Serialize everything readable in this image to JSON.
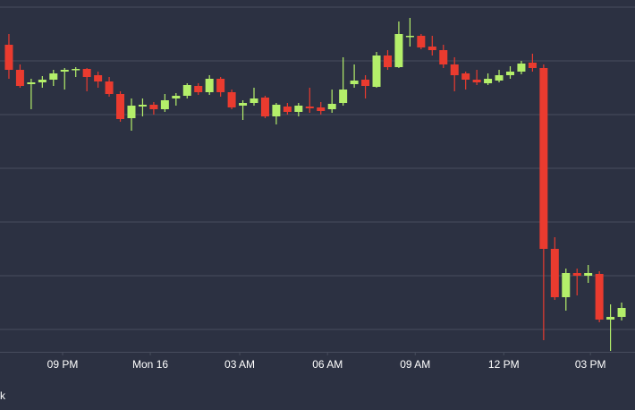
{
  "chart_data": {
    "type": "candlestick",
    "x": [
      0,
      1,
      2,
      3,
      4,
      5,
      6,
      7,
      8,
      9,
      10,
      11,
      12,
      13,
      14,
      15,
      16,
      17,
      18,
      19,
      20,
      21,
      22,
      23,
      24,
      25,
      26,
      27,
      28,
      29,
      30,
      31,
      32,
      33,
      34,
      35,
      36,
      37,
      38,
      39,
      40,
      41,
      42,
      43,
      44,
      45,
      46,
      47,
      48,
      49,
      50,
      51,
      52,
      53,
      54,
      55
    ],
    "open": [
      343,
      315,
      299,
      301,
      304,
      313,
      315,
      316,
      309,
      302,
      288,
      261,
      274,
      276,
      271,
      283,
      286,
      297,
      290,
      305,
      290,
      275,
      278,
      284,
      263,
      274,
      268,
      274,
      273,
      271,
      278,
      299,
      304,
      296,
      331,
      318,
      352,
      353,
      341,
      337,
      321,
      311,
      304,
      300,
      303,
      309,
      313,
      323,
      317,
      115,
      61,
      88,
      85,
      87,
      36,
      39
    ],
    "high": [
      355,
      321,
      305,
      308,
      315,
      317,
      318,
      317,
      313,
      307,
      291,
      283,
      283,
      279,
      288,
      289,
      300,
      300,
      309,
      307,
      293,
      281,
      295,
      286,
      278,
      278,
      278,
      295,
      279,
      293,
      329,
      321,
      309,
      335,
      337,
      369,
      373,
      355,
      353,
      343,
      329,
      313,
      315,
      311,
      315,
      319,
      325,
      333,
      321,
      128,
      93,
      93,
      97,
      90,
      53,
      55
    ],
    "low": [
      305,
      295,
      271,
      295,
      297,
      293,
      307,
      291,
      295,
      285,
      257,
      247,
      263,
      265,
      268,
      275,
      283,
      287,
      287,
      285,
      271,
      259,
      275,
      261,
      254,
      265,
      263,
      267,
      265,
      267,
      275,
      295,
      283,
      295,
      315,
      317,
      341,
      338,
      331,
      317,
      291,
      293,
      298,
      298,
      301,
      305,
      310,
      313,
      13,
      58,
      46,
      63,
      77,
      33,
      1,
      35
    ],
    "close": [
      315,
      297,
      301,
      304,
      311,
      315,
      316,
      307,
      302,
      288,
      260,
      275,
      276,
      271,
      281,
      286,
      298,
      290,
      305,
      290,
      273,
      278,
      283,
      263,
      276,
      268,
      275,
      272,
      269,
      277,
      293,
      303,
      297,
      331,
      318,
      355,
      353,
      340,
      337,
      321,
      309,
      304,
      301,
      305,
      309,
      313,
      322,
      317,
      115,
      61,
      88,
      85,
      88,
      36,
      39,
      49
    ],
    "up_color": "#b4ef6a",
    "down_color": "#ea3b2f",
    "xlim": [
      -0.8,
      56.2
    ],
    "xticks": [
      {
        "value": 4.82,
        "label": "09 PM"
      },
      {
        "value": 12.69,
        "label": "Mon 16"
      },
      {
        "value": 20.72,
        "label": "03 AM"
      },
      {
        "value": 28.6,
        "label": "06 AM"
      },
      {
        "value": 36.47,
        "label": "09 AM"
      },
      {
        "value": 44.42,
        "label": "12 PM"
      },
      {
        "value": 52.2,
        "label": "03 PM"
      }
    ],
    "ylim": [
      0,
      393
    ],
    "ygrid": [
      25,
      85,
      145,
      205,
      265,
      325,
      385
    ],
    "watermark": "k"
  }
}
